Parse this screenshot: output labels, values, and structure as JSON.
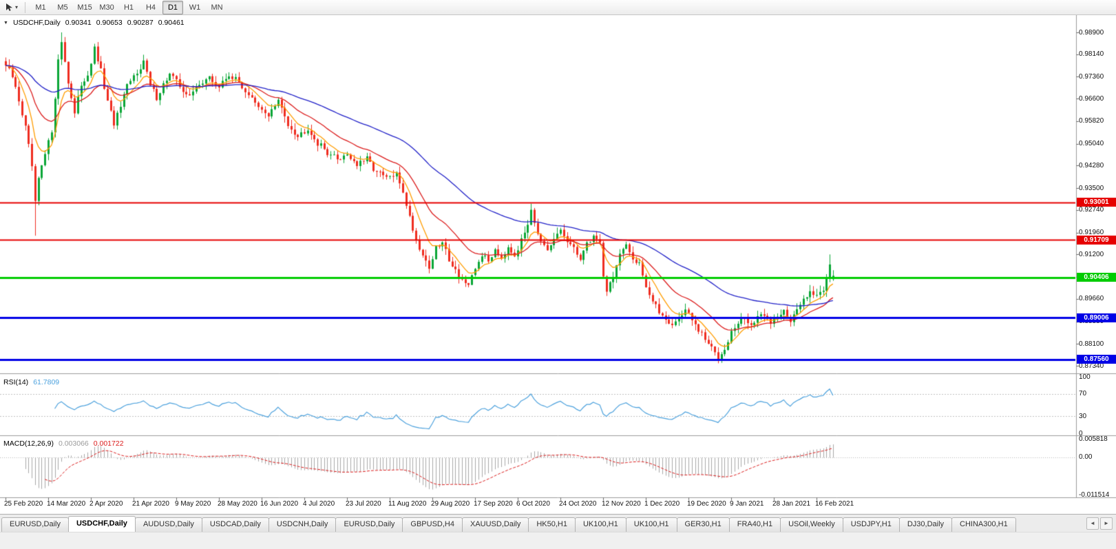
{
  "toolbar": {
    "tool_icon": "cursor-tool-icon",
    "timeframes": [
      {
        "label": "M1",
        "active": false
      },
      {
        "label": "M5",
        "active": false
      },
      {
        "label": "M15",
        "active": false
      },
      {
        "label": "M30",
        "active": false
      },
      {
        "label": "H1",
        "active": false
      },
      {
        "label": "H4",
        "active": false
      },
      {
        "label": "D1",
        "active": true
      },
      {
        "label": "W1",
        "active": false
      },
      {
        "label": "MN",
        "active": false
      }
    ]
  },
  "chart": {
    "symbol_line": {
      "symbol": "USDCHF,Daily",
      "open": "0.90341",
      "high": "0.90653",
      "low": "0.90287",
      "close": "0.90461"
    },
    "price_axis_labels": [
      "0.98900",
      "0.98140",
      "0.97360",
      "0.96600",
      "0.95820",
      "0.95040",
      "0.94280",
      "0.93500",
      "0.92740",
      "0.91960",
      "0.91200",
      "0.90420",
      "0.89660",
      "0.88880",
      "0.88100",
      "0.87340"
    ],
    "hlines": [
      {
        "price": 0.93001,
        "label": "0.93001",
        "color": "#e60000",
        "width": 2
      },
      {
        "price": 0.91709,
        "label": "0.91709",
        "color": "#e60000",
        "width": 2
      },
      {
        "price": 0.90406,
        "label": "0.90406",
        "color": "#00cc00",
        "width": 3
      },
      {
        "price": 0.89006,
        "label": "0.89006",
        "color": "#0000e6",
        "width": 3
      },
      {
        "price": 0.8756,
        "label": "0.87560",
        "color": "#0000e6",
        "width": 3
      }
    ],
    "date_axis_labels": [
      "25 Feb 2020",
      "14 Mar 2020",
      "2 Apr 2020",
      "21 Apr 2020",
      "9 May 2020",
      "28 May 2020",
      "16 Jun 2020",
      "4 Jul 2020",
      "23 Jul 2020",
      "11 Aug 2020",
      "29 Aug 2020",
      "17 Sep 2020",
      "6 Oct 2020",
      "24 Oct 2020",
      "12 Nov 2020",
      "1 Dec 2020",
      "19 Dec 2020",
      "9 Jan 2021",
      "28 Jan 2021",
      "16 Feb 2021"
    ]
  },
  "rsi": {
    "name": "RSI(14)",
    "value": "61.7809",
    "axis_labels": [
      "100",
      "70",
      "30",
      "0"
    ],
    "levels": [
      70,
      30
    ],
    "line_color": "#4ba1dd"
  },
  "macd": {
    "name": "MACD(12,26,9)",
    "main_value": "0.003066",
    "signal_value": "0.001722",
    "axis_labels": [
      "0.005818",
      "0.00",
      "-0.011514"
    ],
    "histogram_color": "#a8a8a8",
    "signal_color": "#dc1c1c"
  },
  "tabs": {
    "scroll_left": "◄",
    "scroll_right": "►",
    "items": [
      {
        "label": "EURUSD,Daily",
        "active": false
      },
      {
        "label": "USDCHF,Daily",
        "active": true
      },
      {
        "label": "AUDUSD,Daily",
        "active": false
      },
      {
        "label": "USDCAD,Daily",
        "active": false
      },
      {
        "label": "USDCNH,Daily",
        "active": false
      },
      {
        "label": "EURUSD,Daily",
        "active": false
      },
      {
        "label": "GBPUSD,H4",
        "active": false
      },
      {
        "label": "XAUUSD,Daily",
        "active": false
      },
      {
        "label": "HK50,H1",
        "active": false
      },
      {
        "label": "UK100,H1",
        "active": false
      },
      {
        "label": "UK100,H1",
        "active": false
      },
      {
        "label": "GER30,H1",
        "active": false
      },
      {
        "label": "FRA40,H1",
        "active": false
      },
      {
        "label": "USOil,Weekly",
        "active": false
      },
      {
        "label": "USDJPY,H1",
        "active": false
      },
      {
        "label": "DJ30,Daily",
        "active": false
      },
      {
        "label": "CHINA300,H1",
        "active": false
      }
    ]
  },
  "chart_data": {
    "type": "candlestick",
    "title": "USDCHF,Daily",
    "timeframe": "D1",
    "current_ohlc": {
      "open": 0.90341,
      "high": 0.90653,
      "low": 0.90287,
      "close": 0.90461
    },
    "y_axis_range": [
      0.8734,
      0.989
    ],
    "num_days": 253,
    "days_per_label": 13,
    "x_labels": [
      "25 Feb 2020",
      "14 Mar 2020",
      "2 Apr 2020",
      "21 Apr 2020",
      "9 May 2020",
      "28 May 2020",
      "16 Jun 2020",
      "4 Jul 2020",
      "23 Jul 2020",
      "11 Aug 2020",
      "29 Aug 2020",
      "17 Sep 2020",
      "6 Oct 2020",
      "24 Oct 2020",
      "12 Nov 2020",
      "1 Dec 2020",
      "19 Dec 2020",
      "9 Jan 2021",
      "28 Jan 2021",
      "16 Feb 2021"
    ],
    "close_anchors": [
      [
        0,
        0.9775
      ],
      [
        2,
        0.9735
      ],
      [
        4,
        0.9655
      ],
      [
        6,
        0.956
      ],
      [
        8,
        0.9425
      ],
      [
        9,
        0.9295
      ],
      [
        10,
        0.938
      ],
      [
        12,
        0.9465
      ],
      [
        14,
        0.955
      ],
      [
        16,
        0.979
      ],
      [
        17,
        0.986
      ],
      [
        19,
        0.972
      ],
      [
        21,
        0.9605
      ],
      [
        23,
        0.971
      ],
      [
        25,
        0.9745
      ],
      [
        27,
        0.983
      ],
      [
        29,
        0.9755
      ],
      [
        31,
        0.9645
      ],
      [
        33,
        0.9575
      ],
      [
        35,
        0.963
      ],
      [
        37,
        0.97
      ],
      [
        40,
        0.9755
      ],
      [
        42,
        0.979
      ],
      [
        44,
        0.9705
      ],
      [
        46,
        0.9665
      ],
      [
        48,
        0.971
      ],
      [
        50,
        0.9745
      ],
      [
        53,
        0.9705
      ],
      [
        56,
        0.9665
      ],
      [
        59,
        0.9715
      ],
      [
        62,
        0.973
      ],
      [
        65,
        0.97
      ],
      [
        68,
        0.9745
      ],
      [
        71,
        0.9715
      ],
      [
        74,
        0.9675
      ],
      [
        77,
        0.9625
      ],
      [
        80,
        0.9605
      ],
      [
        83,
        0.965
      ],
      [
        86,
        0.9575
      ],
      [
        89,
        0.953
      ],
      [
        92,
        0.956
      ],
      [
        95,
        0.9505
      ],
      [
        98,
        0.9475
      ],
      [
        101,
        0.945
      ],
      [
        104,
        0.947
      ],
      [
        107,
        0.943
      ],
      [
        110,
        0.945
      ],
      [
        113,
        0.9405
      ],
      [
        116,
        0.9385
      ],
      [
        119,
        0.9395
      ],
      [
        121,
        0.934
      ],
      [
        123,
        0.925
      ],
      [
        125,
        0.917
      ],
      [
        127,
        0.912
      ],
      [
        129,
        0.9075
      ],
      [
        131,
        0.914
      ],
      [
        133,
        0.916
      ],
      [
        135,
        0.9105
      ],
      [
        137,
        0.9065
      ],
      [
        139,
        0.9035
      ],
      [
        141,
        0.9005
      ],
      [
        143,
        0.907
      ],
      [
        145,
        0.912
      ],
      [
        147,
        0.9095
      ],
      [
        149,
        0.914
      ],
      [
        151,
        0.911
      ],
      [
        153,
        0.915
      ],
      [
        155,
        0.912
      ],
      [
        157,
        0.9165
      ],
      [
        159,
        0.923
      ],
      [
        160,
        0.9285
      ],
      [
        161,
        0.9235
      ],
      [
        163,
        0.916
      ],
      [
        165,
        0.9125
      ],
      [
        167,
        0.917
      ],
      [
        169,
        0.9205
      ],
      [
        171,
        0.9165
      ],
      [
        173,
        0.9135
      ],
      [
        175,
        0.911
      ],
      [
        177,
        0.9155
      ],
      [
        179,
        0.9185
      ],
      [
        181,
        0.916
      ],
      [
        182,
        0.905
      ],
      [
        183,
        0.8995
      ],
      [
        185,
        0.9045
      ],
      [
        187,
        0.912
      ],
      [
        189,
        0.9145
      ],
      [
        191,
        0.9105
      ],
      [
        193,
        0.9095
      ],
      [
        195,
        0.901
      ],
      [
        197,
        0.8955
      ],
      [
        199,
        0.892
      ],
      [
        201,
        0.89
      ],
      [
        203,
        0.8875
      ],
      [
        205,
        0.89
      ],
      [
        207,
        0.893
      ],
      [
        209,
        0.889
      ],
      [
        211,
        0.8855
      ],
      [
        213,
        0.8825
      ],
      [
        215,
        0.8795
      ],
      [
        217,
        0.8762
      ],
      [
        219,
        0.88
      ],
      [
        221,
        0.885
      ],
      [
        223,
        0.888
      ],
      [
        225,
        0.89
      ],
      [
        227,
        0.8875
      ],
      [
        229,
        0.8895
      ],
      [
        231,
        0.8915
      ],
      [
        233,
        0.8885
      ],
      [
        235,
        0.8905
      ],
      [
        237,
        0.8935
      ],
      [
        239,
        0.8885
      ],
      [
        241,
        0.8925
      ],
      [
        243,
        0.8965
      ],
      [
        245,
        0.9
      ],
      [
        247,
        0.8975
      ],
      [
        249,
        0.9
      ],
      [
        251,
        0.909
      ],
      [
        252,
        0.90461
      ]
    ],
    "special_wicks": [
      {
        "day": 9,
        "low": 0.9185
      },
      {
        "day": 17,
        "high": 0.989
      },
      {
        "day": 160,
        "high": 0.9296
      },
      {
        "day": 217,
        "low": 0.8757
      },
      {
        "day": 251,
        "high": 0.912
      }
    ],
    "moving_averages": [
      {
        "period": 8,
        "color": "#ff9d00"
      },
      {
        "period": 21,
        "color": "#dc1c1c"
      },
      {
        "period": 60,
        "color": "#2020c8"
      }
    ],
    "horizontal_levels": [
      0.93001,
      0.91709,
      0.90406,
      0.89006,
      0.8756
    ],
    "indicators": [
      {
        "type": "RSI",
        "period": 14,
        "current": 61.7809,
        "levels": [
          70,
          30
        ],
        "range": [
          0,
          100
        ]
      },
      {
        "type": "MACD",
        "fast": 12,
        "slow": 26,
        "signal": 9,
        "current_main": 0.003066,
        "current_signal": 0.001722,
        "axis_range": [
          -0.011514,
          0.005818
        ]
      }
    ],
    "candle_up_color": "#0aa636",
    "candle_down_color": "#ef2c1f"
  }
}
